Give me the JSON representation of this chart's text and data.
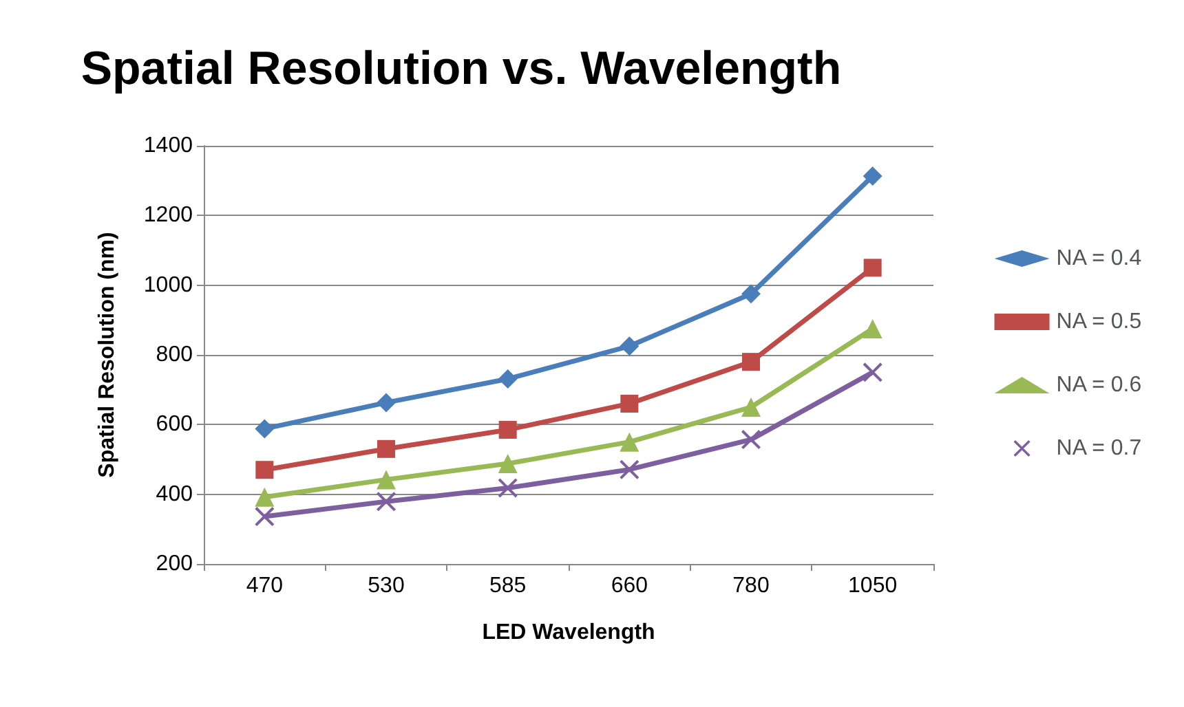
{
  "chart_data": {
    "type": "line",
    "title": "Spatial Resolution vs. Wavelength",
    "xlabel": "LED Wavelength",
    "ylabel": "Spatial Resolution (nm)",
    "categories": [
      "470",
      "530",
      "585",
      "660",
      "780",
      "1050"
    ],
    "series": [
      {
        "name": "NA = 0.4",
        "color": "#4a7ebb",
        "marker": "diamond",
        "values": [
          588,
          663,
          731,
          825,
          975,
          1313
        ]
      },
      {
        "name": "NA = 0.5",
        "color": "#be4b48",
        "marker": "square",
        "values": [
          470,
          530,
          585,
          660,
          780,
          1050
        ]
      },
      {
        "name": "NA = 0.6",
        "color": "#98b954",
        "marker": "triangle",
        "values": [
          392,
          442,
          488,
          550,
          650,
          875
        ]
      },
      {
        "name": "NA = 0.7",
        "color": "#7d5fa0",
        "marker": "cross",
        "values": [
          336,
          379,
          418,
          471,
          557,
          750
        ]
      }
    ],
    "ylim": [
      200,
      1400
    ],
    "yticks": [
      200,
      400,
      600,
      800,
      1000,
      1200,
      1400
    ],
    "grid": "y",
    "legend": "right",
    "line_style": "solid"
  }
}
